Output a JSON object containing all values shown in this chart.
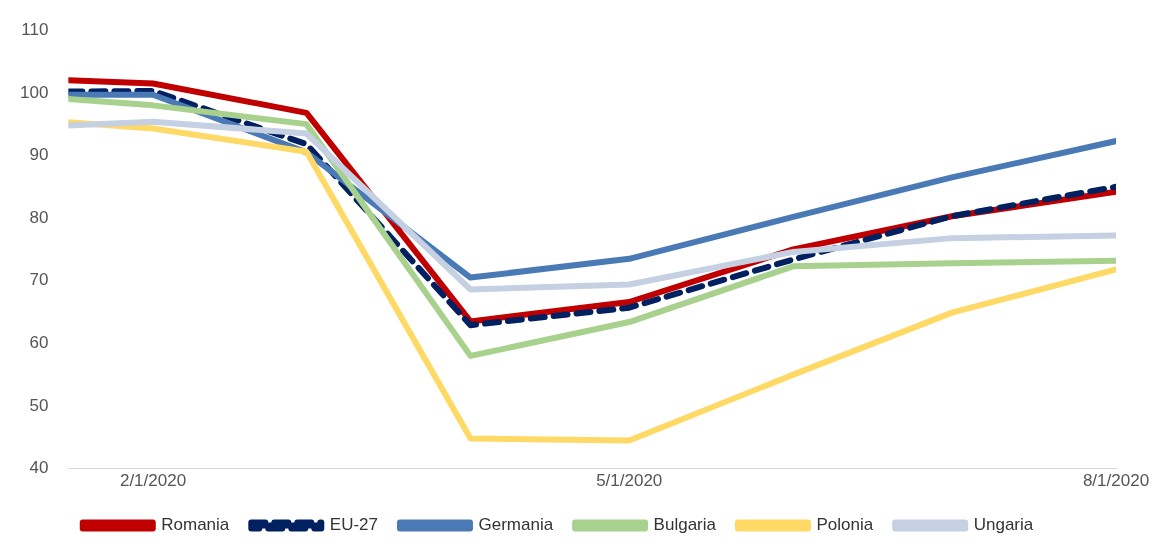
{
  "chart_data": {
    "type": "line",
    "x": [
      "2020-01-16",
      "2020-02-01",
      "2020-03-01",
      "2020-04-01",
      "2020-05-01",
      "2020-06-01",
      "2020-07-01",
      "2020-08-01"
    ],
    "xlim": [
      "2020-01-16",
      "2020-08-01"
    ],
    "xticks": [
      {
        "value": "2020-02-01",
        "label": "2/1/2020"
      },
      {
        "value": "2020-05-01",
        "label": "5/1/2020"
      },
      {
        "value": "2020-08-01",
        "label": "8/1/2020"
      }
    ],
    "ylim": [
      40,
      110
    ],
    "yticks": [
      40,
      50,
      60,
      70,
      80,
      90,
      100,
      110
    ],
    "grid": false,
    "legend": "bottom",
    "marker": "none",
    "series": [
      {
        "name": "Romania",
        "color": "#c00000",
        "values": [
          102,
          101.5,
          96.8,
          63.5,
          66.6,
          75,
          80.3,
          84.2
        ]
      },
      {
        "name": "EU-27",
        "color": "#002060",
        "line_style": "dashed",
        "values": [
          100.2,
          100.3,
          91.8,
          62.9,
          65.7,
          73.4,
          80.3,
          85
        ]
      },
      {
        "name": "Germania",
        "color": "#4a7ab5",
        "values": [
          99.7,
          99.7,
          90.5,
          70.5,
          73.5,
          80.2,
          86.5,
          92.3
        ]
      },
      {
        "name": "Bulgaria",
        "color": "#a9d18e",
        "values": [
          99,
          98,
          95,
          58,
          63.4,
          72.3,
          72.8,
          73.2
        ]
      },
      {
        "name": "Polonia",
        "color": "#ffd966",
        "values": [
          95.3,
          94.3,
          90.6,
          44.8,
          44.5,
          55,
          64.9,
          71.8
        ]
      },
      {
        "name": "Ungaria",
        "color": "#c5d0e3",
        "values": [
          94.8,
          95.4,
          93.5,
          68.6,
          69.4,
          74.6,
          76.8,
          77.2
        ]
      }
    ]
  }
}
